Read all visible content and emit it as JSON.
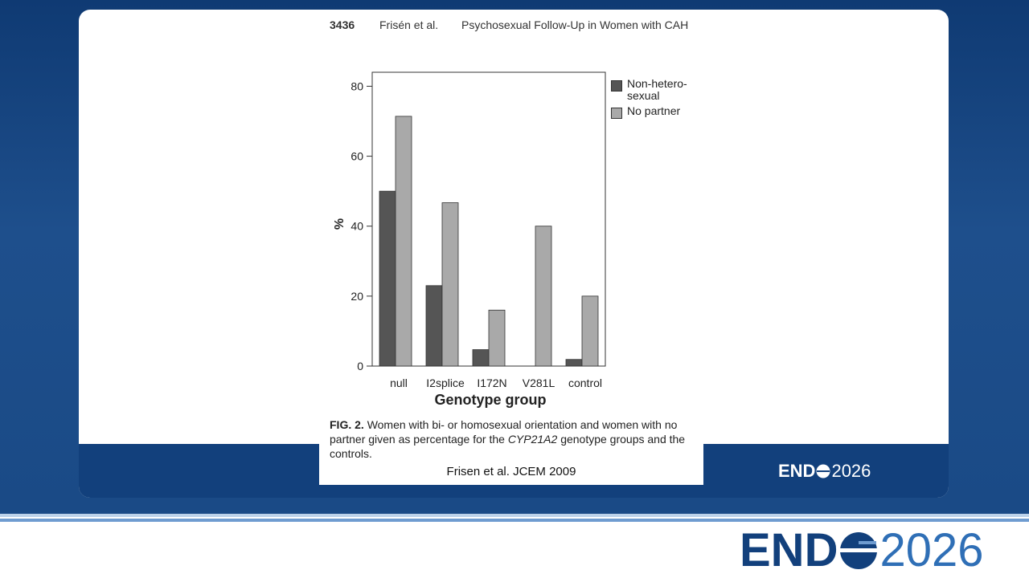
{
  "header": {
    "page": "3436",
    "authors": "Frisén et al.",
    "running_title": "Psychosexual Follow-Up in Women with CAH"
  },
  "chart_data": {
    "type": "bar",
    "y_label": "%",
    "x_label": "Genotype group",
    "categories": [
      "null",
      "I2splice",
      "I172N",
      "V281L",
      "control"
    ],
    "series": [
      {
        "name": "Non-hetero-sexual",
        "color": "#555555",
        "values": [
          50,
          23,
          4.7,
          0,
          1.9
        ]
      },
      {
        "name": "No partner",
        "color": "#a9a9a9",
        "values": [
          71.4,
          46.7,
          16,
          40,
          20
        ]
      }
    ],
    "ylim": [
      0,
      84
    ],
    "yticks": [
      0,
      20,
      40,
      60,
      80
    ],
    "grid": false,
    "legend": "outside-right"
  },
  "caption": {
    "label": "FIG. 2.",
    "text_before": "Women with bi- or homosexual orientation and women with no partner given as percentage for the",
    "gene": "CYP21A2",
    "text_after": "genotype groups and the controls."
  },
  "citation": "Frisen et al.  JCEM 2009",
  "brand": {
    "left": "END",
    "right": "2026"
  }
}
